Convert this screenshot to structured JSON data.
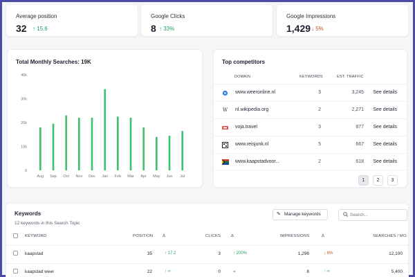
{
  "stats": [
    {
      "label": "Average position",
      "value": "32",
      "delta": "15.6",
      "direction": "up"
    },
    {
      "label": "Google Clicks",
      "value": "8",
      "delta": "33%",
      "direction": "up"
    },
    {
      "label": "Google Impressions",
      "value": "1,429",
      "delta": "5%",
      "direction": "down"
    }
  ],
  "colors": {
    "up": "#1e9d5d",
    "down": "#c0502a",
    "bar": "#3cc26e",
    "frame": "#4b4ba8"
  },
  "chart_panel": {
    "title": "Total Monthly Searches: 19K"
  },
  "chart_data": {
    "type": "bar",
    "title": "Total Monthly Searches: 19K",
    "categories": [
      "Aug",
      "Sep",
      "Oct",
      "Nov",
      "Dec",
      "Jan",
      "Feb",
      "Mar",
      "Apr",
      "May",
      "Jun",
      "Jul"
    ],
    "values": [
      18000,
      19500,
      23000,
      22000,
      22000,
      34000,
      22500,
      22000,
      18000,
      14000,
      14500,
      16500
    ],
    "y_ticks": [
      "0",
      "10k",
      "20k",
      "30k",
      "40k"
    ],
    "ylim": [
      0,
      40000
    ],
    "grid": false,
    "xlabel": "",
    "ylabel": ""
  },
  "competitors": {
    "title": "Top competitors",
    "headers": {
      "domain": "DOMAIN",
      "keywords": "KEYWORDS",
      "traffic": "EST. TRAFFIC"
    },
    "rows": [
      {
        "icon": "blue-circle-icon",
        "domain": "www.weeronline.nl",
        "keywords": "3",
        "traffic": "3,245",
        "action": "See details"
      },
      {
        "icon": "wikipedia-w-icon",
        "domain": "nl.wikipedia.org",
        "keywords": "2",
        "traffic": "2,271",
        "action": "See details"
      },
      {
        "icon": "voja-logo-icon",
        "domain": "voja.travel",
        "keywords": "3",
        "traffic": "877",
        "action": "See details"
      },
      {
        "icon": "qr-logo-icon",
        "domain": "www.reisjunk.nl",
        "keywords": "5",
        "traffic": "667",
        "action": "See details"
      },
      {
        "icon": "flag-icon",
        "domain": "www.kaapstadvoor...",
        "keywords": "2",
        "traffic": "618",
        "action": "See details"
      }
    ],
    "pages": [
      "1",
      "2",
      "3"
    ],
    "current_page": "1"
  },
  "keywords": {
    "title": "Keywords",
    "subtitle": "12 keywords in this Search Topic",
    "manage_label": "Manage keywords",
    "search_placeholder": "Search...",
    "headers": {
      "keyword": "KEYWORD",
      "position": "POSITION",
      "pos_delta": "Δ",
      "clicks": "CLICKS",
      "clicks_delta": "Δ",
      "impressions": "IMPRESSIONS",
      "imp_delta": "Δ",
      "searches": "SEARCHES / MO."
    },
    "rows": [
      {
        "keyword": "kaapstad",
        "position": "35",
        "pos_delta": "↑ 17.2",
        "clicks": "3",
        "clicks_delta": "↑ 200%",
        "impressions": "1,296",
        "imp_delta": "↓ 6%",
        "searches": "12,100"
      },
      {
        "keyword": "kaapstad weer",
        "position": "22",
        "pos_delta": "↑ ∞",
        "clicks": "0",
        "clicks_delta": "=",
        "impressions": "8",
        "imp_delta": "↑ ∞",
        "searches": "5,400"
      }
    ]
  }
}
